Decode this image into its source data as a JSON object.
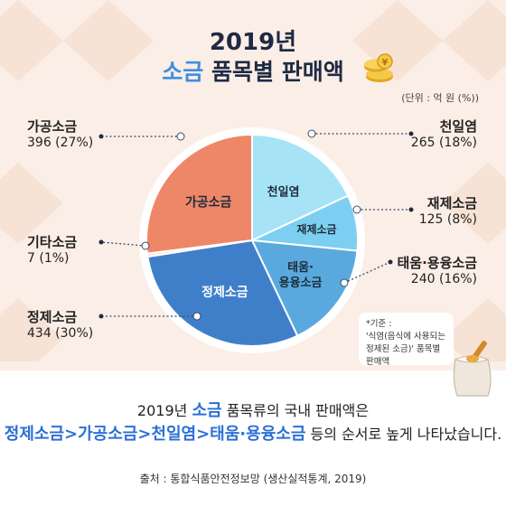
{
  "title_line1": "2019년",
  "title_line2_highlight": "소금",
  "title_line2_rest": "품목별 판매액",
  "unit_note": "(단위 : 억 원 (%))",
  "chart_data": {
    "type": "pie",
    "title": "2019년 소금 품목별 판매액",
    "unit": "억 원",
    "slices": [
      {
        "name": "천일염",
        "value": 265,
        "percent": 18,
        "color": "#a6e3f7",
        "inner_label": "천일염",
        "outer_name": "천일염",
        "outer_value": "265 (18%)"
      },
      {
        "name": "재제소금",
        "value": 125,
        "percent": 8,
        "color": "#7ccff0",
        "inner_label": "재제소금",
        "outer_name": "재제소금",
        "outer_value": "125 (8%)"
      },
      {
        "name": "태움·용융소금",
        "value": 240,
        "percent": 16,
        "color": "#59a9de",
        "inner_label": "태움·\n용융소금",
        "outer_name": "태움·용융소금",
        "outer_value": "240 (16%)"
      },
      {
        "name": "정제소금",
        "value": 434,
        "percent": 30,
        "color": "#3f7fca",
        "inner_label": "정제소금",
        "outer_name": "정제소금",
        "outer_value": "434 (30%)"
      },
      {
        "name": "기타소금",
        "value": 7,
        "percent": 1,
        "color": "#f7e1d5",
        "inner_label": "",
        "outer_name": "기타소금",
        "outer_value": "7 (1%)"
      },
      {
        "name": "가공소금",
        "value": 396,
        "percent": 27,
        "color": "#ee8768",
        "inner_label": "가공소금",
        "outer_name": "가공소금",
        "outer_value": "396 (27%)"
      }
    ]
  },
  "criteria_note": {
    "line1": "*기준 :",
    "line2": "'식염(음식에 사용되는",
    "line3": "정제된 소금)' 품목별 판매액"
  },
  "summary": {
    "l1_pre": "2019년",
    "l1_hl": "소금",
    "l1_post": "품목류의 국내 판매액은",
    "l2_hl": "정제소금>가공소금>천일염>태움·용융소금",
    "l2_post": "등의 순서로 높게 나타났습니다."
  },
  "source": "출처 : 통합식품안전정보망 (생산실적통계, 2019)"
}
